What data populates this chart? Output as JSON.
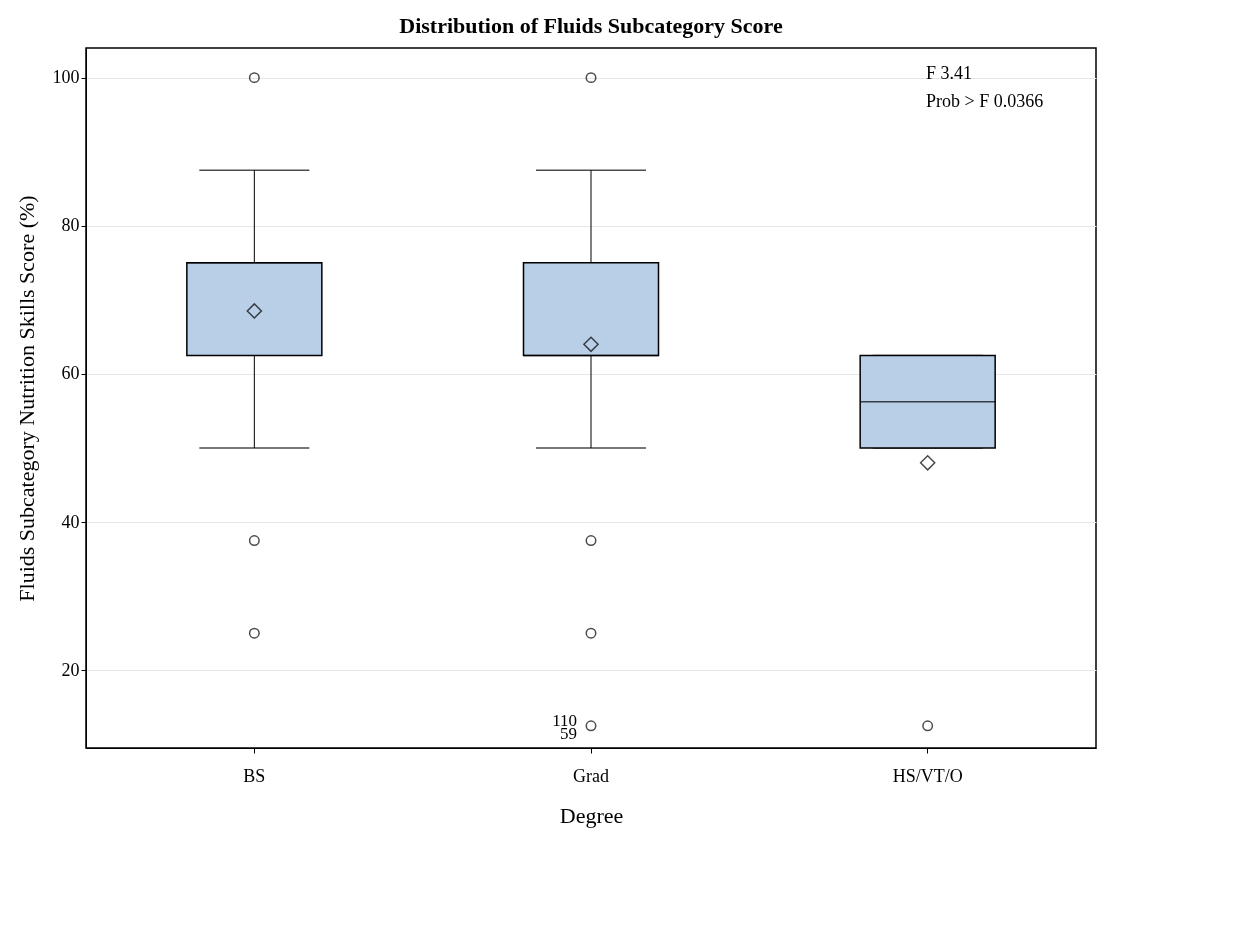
{
  "chart_data": {
    "type": "box",
    "title": "Distribution of Fluids Subcategory Score",
    "xlabel": "Degree",
    "ylabel": "Fluids Subcategory Nutrition Skills Score (%)",
    "categories": [
      "BS",
      "Grad",
      "HS/VT/O"
    ],
    "boxes": [
      {
        "low": 50,
        "q1": 62.5,
        "median": 75,
        "q3": 75,
        "high": 87.5,
        "mean": 68.5,
        "outliers": [
          100,
          37.5,
          25
        ]
      },
      {
        "low": 50,
        "q1": 62.5,
        "median": 62.5,
        "q3": 75,
        "high": 87.5,
        "mean": 64,
        "outliers": [
          100,
          37.5,
          25,
          12.5
        ]
      },
      {
        "low": 50,
        "q1": 50,
        "median": 56.25,
        "q3": 62.5,
        "high": 62.5,
        "mean": 48,
        "outliers": [
          12.5
        ]
      }
    ],
    "color": "#b9cfe7",
    "ylim": [
      9.5,
      104
    ],
    "yticks": [
      20,
      40,
      60,
      80,
      100
    ],
    "grid": "y",
    "annotations": [
      "F 3.41",
      "Prob > F 0.0366",
      "110",
      "59"
    ]
  }
}
